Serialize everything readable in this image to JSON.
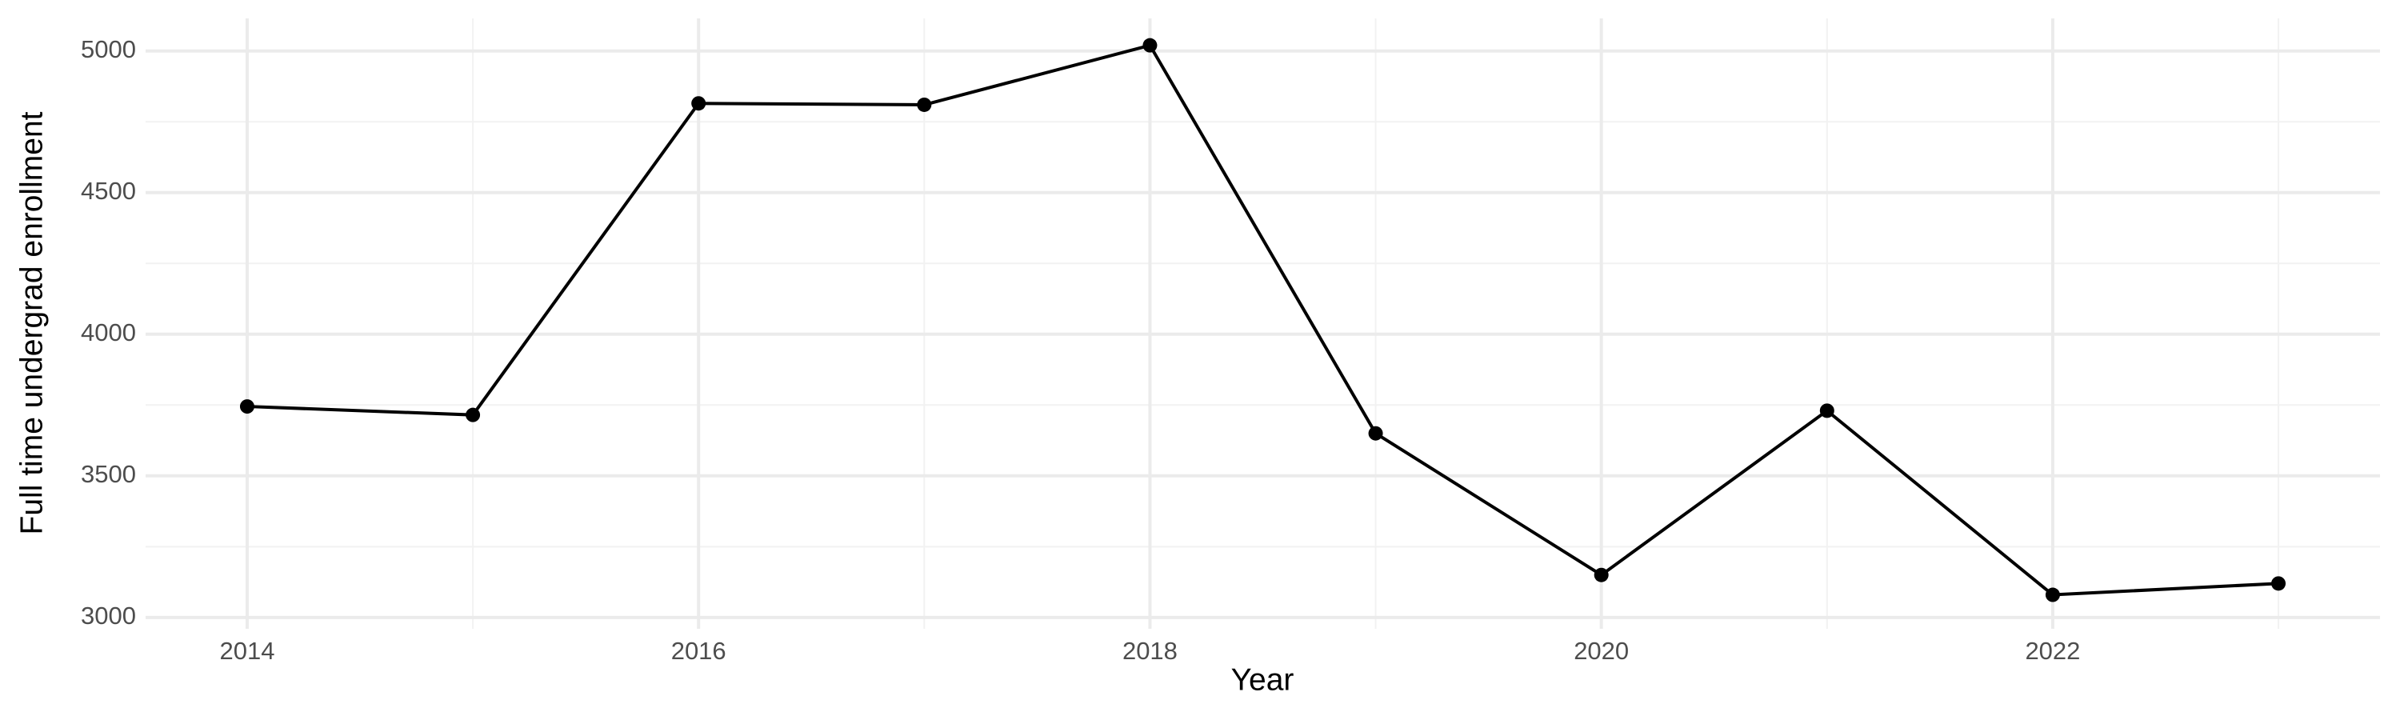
{
  "chart_data": {
    "type": "line",
    "x_label": "Year",
    "y_label": "Full time undergrad enrollment",
    "x": [
      2014,
      2015,
      2016,
      2017,
      2018,
      2019,
      2020,
      2021,
      2022,
      2023
    ],
    "series": [
      {
        "name": "Full time undergrad enrollment",
        "color": "#000000",
        "values": [
          3745,
          3715,
          4815,
          4810,
          5020,
          3650,
          3150,
          3730,
          3080,
          3120
        ]
      }
    ],
    "xlim": [
      2013.55,
      2023.45
    ],
    "xticks": [
      2014,
      2016,
      2018,
      2020,
      2022
    ],
    "xminor": [
      2015,
      2017,
      2019,
      2021,
      2023
    ],
    "ylim": [
      2960,
      5115
    ],
    "yticks": [
      3000,
      3500,
      4000,
      4500,
      5000
    ],
    "yminor": [
      3250,
      3750,
      4250,
      4750
    ],
    "grid": true
  }
}
